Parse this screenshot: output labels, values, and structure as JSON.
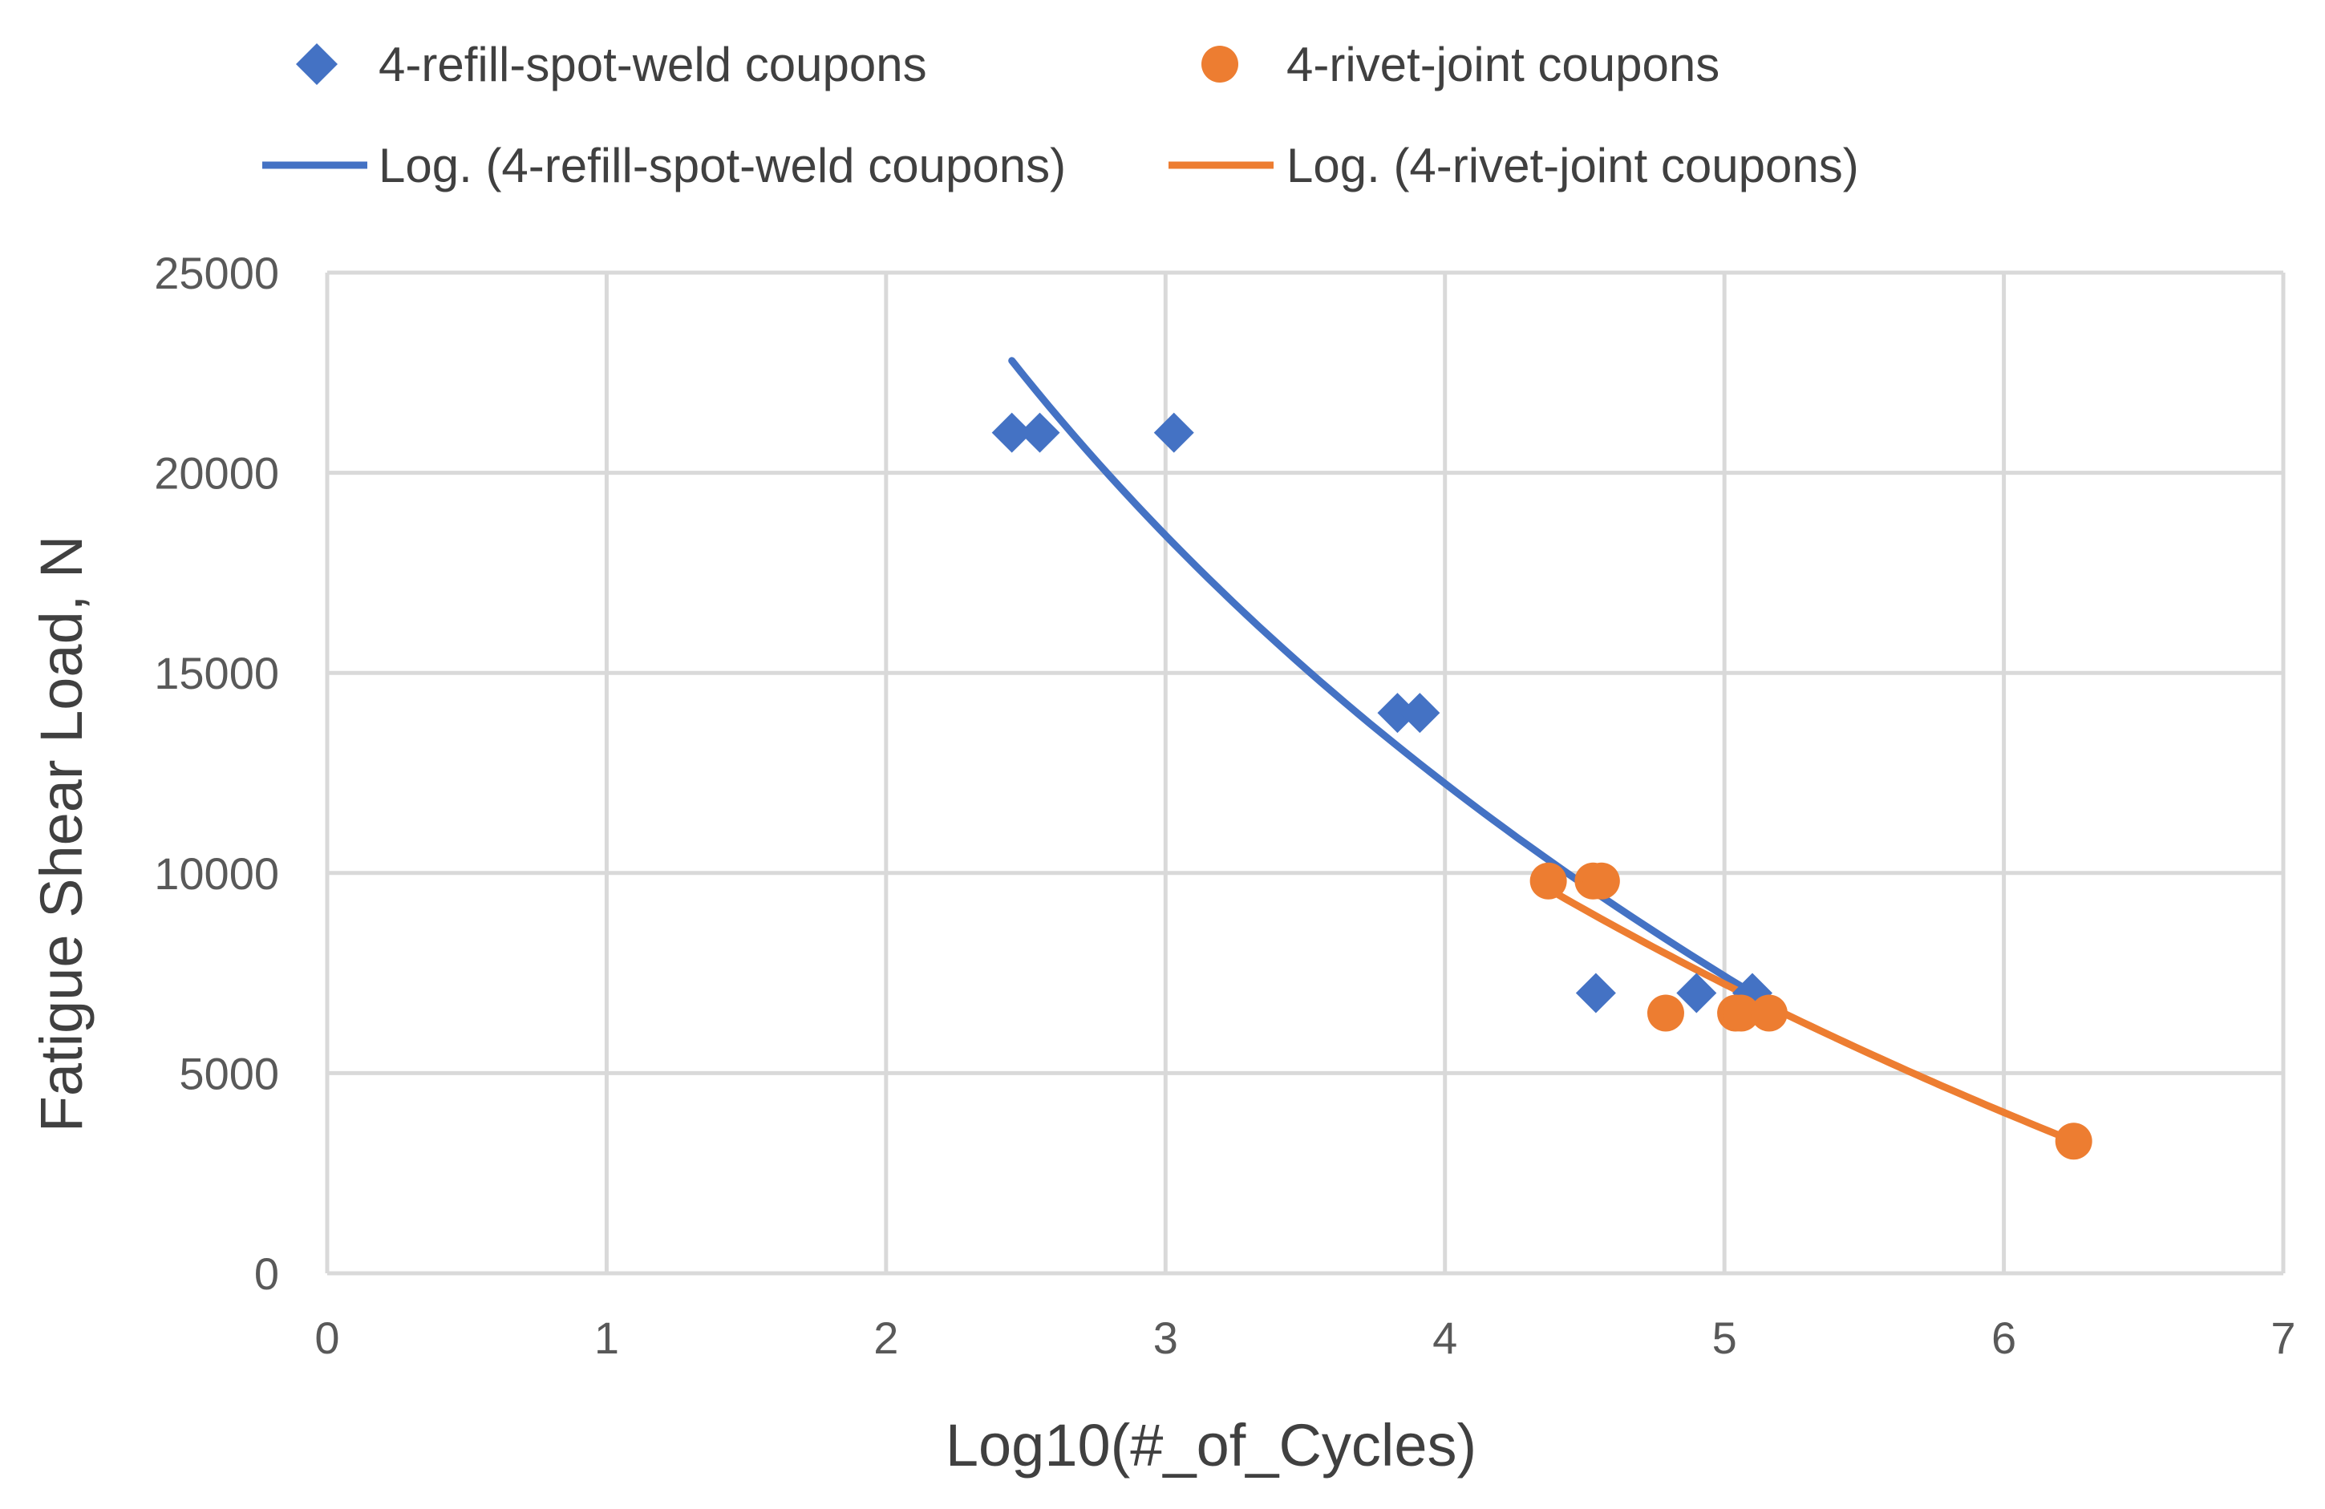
{
  "chart_data": {
    "type": "scatter",
    "title": "",
    "xlabel": "Log10(#_of_Cycles)",
    "ylabel": "Fatigue Shear Load, N",
    "xlim": [
      0,
      7
    ],
    "ylim": [
      0,
      25000
    ],
    "x_ticks": [
      "0",
      "1",
      "2",
      "3",
      "4",
      "5",
      "6",
      "7"
    ],
    "y_ticks": [
      "0",
      "5000",
      "10000",
      "15000",
      "20000",
      "25000"
    ],
    "grid": true,
    "legend_position": "top",
    "series": [
      {
        "name": "4-refill-spot-weld coupons",
        "marker": "diamond",
        "color": "#4472C4",
        "points": [
          {
            "x": 2.45,
            "y": 21000
          },
          {
            "x": 2.55,
            "y": 21000
          },
          {
            "x": 3.03,
            "y": 21000
          },
          {
            "x": 3.83,
            "y": 14000
          },
          {
            "x": 3.91,
            "y": 14000
          },
          {
            "x": 4.54,
            "y": 7000
          },
          {
            "x": 4.9,
            "y": 7000
          },
          {
            "x": 5.1,
            "y": 7000
          }
        ]
      },
      {
        "name": "4-rivet-joint coupons",
        "marker": "circle",
        "color": "#ED7D31",
        "points": [
          {
            "x": 4.37,
            "y": 9800
          },
          {
            "x": 4.53,
            "y": 9800
          },
          {
            "x": 4.56,
            "y": 9800
          },
          {
            "x": 4.79,
            "y": 6500
          },
          {
            "x": 5.04,
            "y": 6500
          },
          {
            "x": 5.06,
            "y": 6500
          },
          {
            "x": 5.16,
            "y": 6500
          },
          {
            "x": 6.25,
            "y": 3300
          }
        ]
      }
    ],
    "trendlines": [
      {
        "name": "Log. (4-refill-spot-weld coupons)",
        "color": "#4472C4",
        "x_range": [
          2.45,
          5.1
        ],
        "y_at_start": 22800,
        "y_at_end": 7000
      },
      {
        "name": "Log. (4-rivet-joint coupons)",
        "color": "#ED7D31",
        "x_range": [
          4.37,
          6.25
        ],
        "y_at_start": 9600,
        "y_at_end": 3300
      }
    ]
  }
}
